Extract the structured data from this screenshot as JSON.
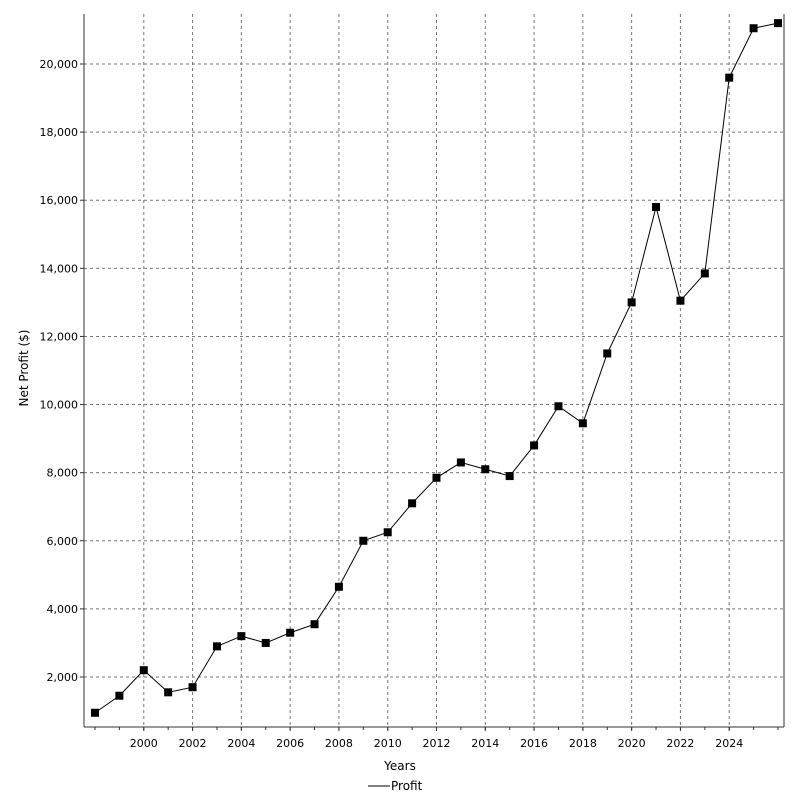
{
  "chart_data": {
    "type": "line",
    "title": "",
    "xlabel": "Years",
    "ylabel": "Net Profit ($)",
    "x": [
      1998,
      1999,
      2000,
      2001,
      2002,
      2003,
      2004,
      2005,
      2006,
      2007,
      2008,
      2009,
      2010,
      2011,
      2012,
      2013,
      2014,
      2015,
      2016,
      2017,
      2018,
      2019,
      2020,
      2021,
      2022,
      2023,
      2024,
      2025,
      2026
    ],
    "series": [
      {
        "name": "Profit",
        "color": "#000000",
        "marker": "square",
        "values": [
          950,
          1450,
          2200,
          1550,
          1700,
          2900,
          3200,
          3000,
          3300,
          3550,
          4650,
          6000,
          6250,
          7100,
          7850,
          8300,
          8100,
          7900,
          8800,
          9950,
          9450,
          11500,
          13000,
          15800,
          13050,
          13850,
          19600,
          21050,
          21200
        ]
      }
    ],
    "xticks": [
      "2000",
      "2002",
      "2004",
      "2006",
      "2008",
      "2010",
      "2012",
      "2014",
      "2016",
      "2018",
      "2020",
      "2022",
      "2024"
    ],
    "yticks": [
      "2,000",
      "4,000",
      "6,000",
      "8,000",
      "10,000",
      "12,000",
      "14,000",
      "16,000",
      "18,000",
      "20,000"
    ],
    "xlim": [
      1998,
      2026
    ],
    "ylim": [
      900,
      21350
    ],
    "grid": true,
    "legend": "bottom-center"
  }
}
